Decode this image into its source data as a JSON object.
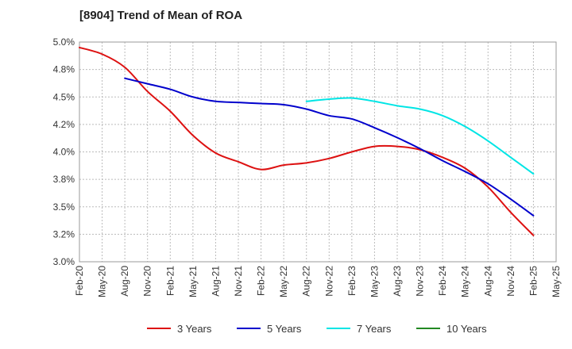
{
  "chart_data": {
    "type": "line",
    "title": "[8904]  Trend of Mean of ROA",
    "xlabel": "",
    "ylabel": "",
    "ylim": [
      3.0,
      5.0
    ],
    "y_ticks": [
      "3.0%",
      "3.2%",
      "3.5%",
      "3.8%",
      "4.0%",
      "4.2%",
      "4.5%",
      "4.8%",
      "5.0%"
    ],
    "y_tick_values": [
      3.0,
      3.25,
      3.5,
      3.75,
      4.0,
      4.25,
      4.5,
      4.75,
      5.0
    ],
    "categories": [
      "Feb-20",
      "May-20",
      "Aug-20",
      "Nov-20",
      "Feb-21",
      "May-21",
      "Aug-21",
      "Nov-21",
      "Feb-22",
      "May-22",
      "Aug-22",
      "Nov-22",
      "Feb-23",
      "May-23",
      "Aug-23",
      "Nov-23",
      "Feb-24",
      "May-24",
      "Aug-24",
      "Nov-24",
      "Feb-25",
      "May-25"
    ],
    "grid": true,
    "series": [
      {
        "name": "3 Years",
        "color": "#dd1111",
        "values": [
          4.95,
          4.89,
          4.77,
          4.55,
          4.37,
          4.15,
          3.99,
          3.91,
          3.84,
          3.88,
          3.9,
          3.94,
          4.0,
          4.05,
          4.05,
          4.02,
          3.95,
          3.85,
          3.68,
          3.45,
          3.24,
          null
        ]
      },
      {
        "name": "5 Years",
        "color": "#0000cc",
        "values": [
          null,
          null,
          4.67,
          4.62,
          4.57,
          4.5,
          4.46,
          4.45,
          4.44,
          4.43,
          4.39,
          4.33,
          4.3,
          4.22,
          4.13,
          4.03,
          3.92,
          3.82,
          3.71,
          3.57,
          3.42,
          null
        ]
      },
      {
        "name": "7 Years",
        "color": "#00e5e5",
        "values": [
          null,
          null,
          null,
          null,
          null,
          null,
          null,
          null,
          null,
          null,
          4.46,
          4.48,
          4.49,
          4.46,
          4.42,
          4.39,
          4.33,
          4.23,
          4.1,
          3.95,
          3.8,
          null
        ]
      },
      {
        "name": "10 Years",
        "color": "#228822",
        "values": [
          null,
          null,
          null,
          null,
          null,
          null,
          null,
          null,
          null,
          null,
          null,
          null,
          null,
          null,
          null,
          null,
          null,
          null,
          null,
          null,
          null,
          null
        ]
      }
    ]
  }
}
